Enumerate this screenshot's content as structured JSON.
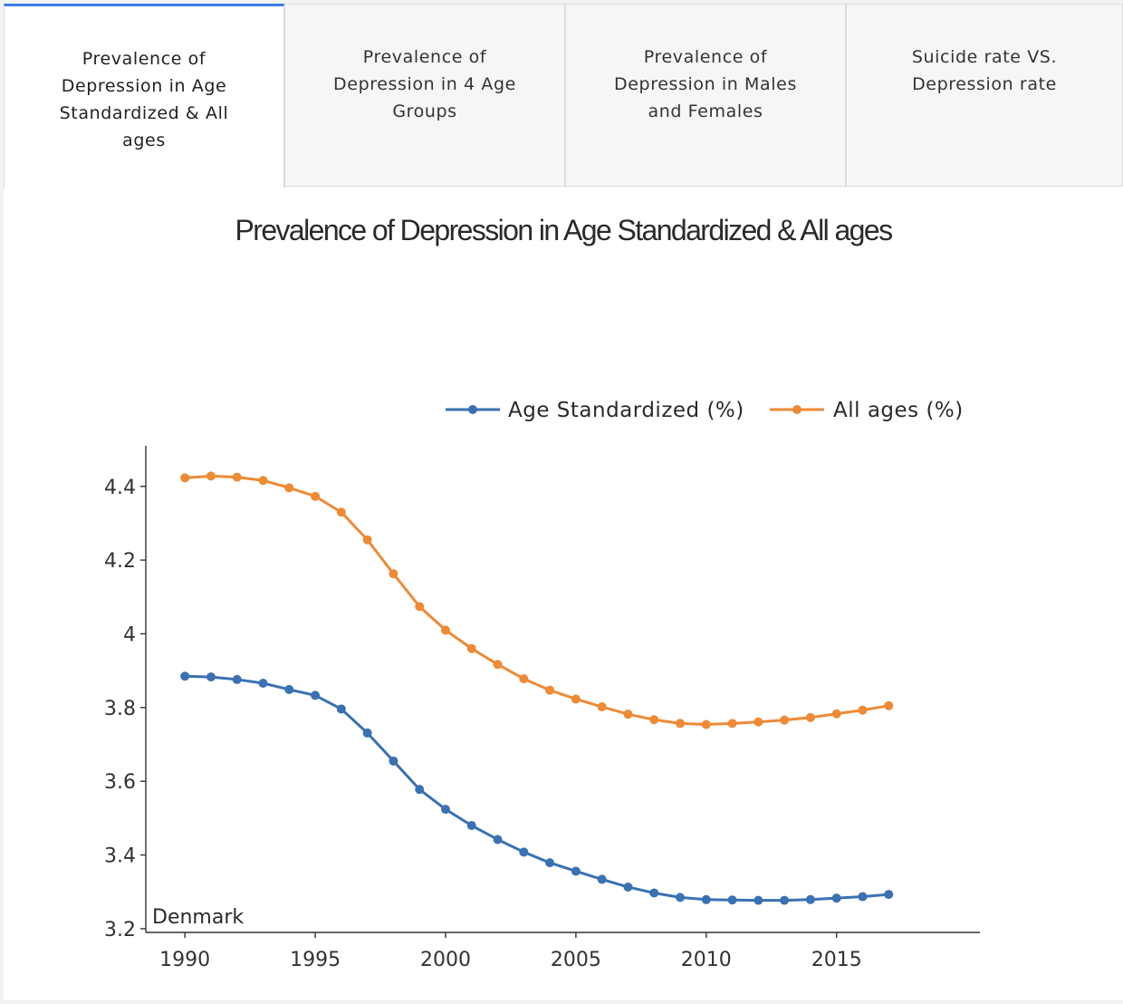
{
  "tabs": [
    {
      "label": "Prevalence of Depression in Age Standardized & All ages",
      "active": true
    },
    {
      "label": "Prevalence of Depression in 4 Age Groups",
      "active": false
    },
    {
      "label": "Prevalence of Depression in Males and Females",
      "active": false
    },
    {
      "label": "Suicide rate VS. Depression rate",
      "active": false
    }
  ],
  "colors": {
    "age_standardized": "#3a71b3",
    "all_ages": "#ee8a36",
    "active_tab_border": "#3b7be9"
  },
  "chart_data": {
    "type": "line",
    "title": "Prevalence of Depression in Age Standardized & All ages",
    "annotation": "Denmark",
    "xlabel": "",
    "ylabel": "",
    "xlim": [
      1988.5,
      2020.5
    ],
    "ylim": [
      3.19,
      4.51
    ],
    "xticks": [
      1990,
      1995,
      2000,
      2005,
      2010,
      2015
    ],
    "yticks": [
      3.2,
      3.4,
      3.6,
      3.8,
      4,
      4.2,
      4.4
    ],
    "ytick_labels": [
      "3.2",
      "3.4",
      "3.6",
      "3.8",
      "4",
      "4.2",
      "4.4"
    ],
    "legend_position": "top-right",
    "grid": false,
    "x": [
      1990,
      1991,
      1992,
      1993,
      1994,
      1995,
      1996,
      1997,
      1998,
      1999,
      2000,
      2001,
      2002,
      2003,
      2004,
      2005,
      2006,
      2007,
      2008,
      2009,
      2010,
      2011,
      2012,
      2013,
      2014,
      2015,
      2016,
      2017
    ],
    "series": [
      {
        "name": "Age Standardized (%)",
        "values": [
          3.885,
          3.883,
          3.876,
          3.866,
          3.849,
          3.833,
          3.796,
          3.731,
          3.655,
          3.578,
          3.524,
          3.48,
          3.442,
          3.408,
          3.379,
          3.356,
          3.334,
          3.313,
          3.297,
          3.285,
          3.279,
          3.278,
          3.277,
          3.277,
          3.279,
          3.283,
          3.287,
          3.293
        ]
      },
      {
        "name": "All ages (%)",
        "values": [
          4.423,
          4.428,
          4.425,
          4.416,
          4.396,
          4.373,
          4.33,
          4.255,
          4.163,
          4.074,
          4.01,
          3.96,
          3.917,
          3.878,
          3.847,
          3.823,
          3.802,
          3.782,
          3.767,
          3.757,
          3.754,
          3.757,
          3.761,
          3.766,
          3.773,
          3.783,
          3.793,
          3.805
        ]
      }
    ]
  }
}
